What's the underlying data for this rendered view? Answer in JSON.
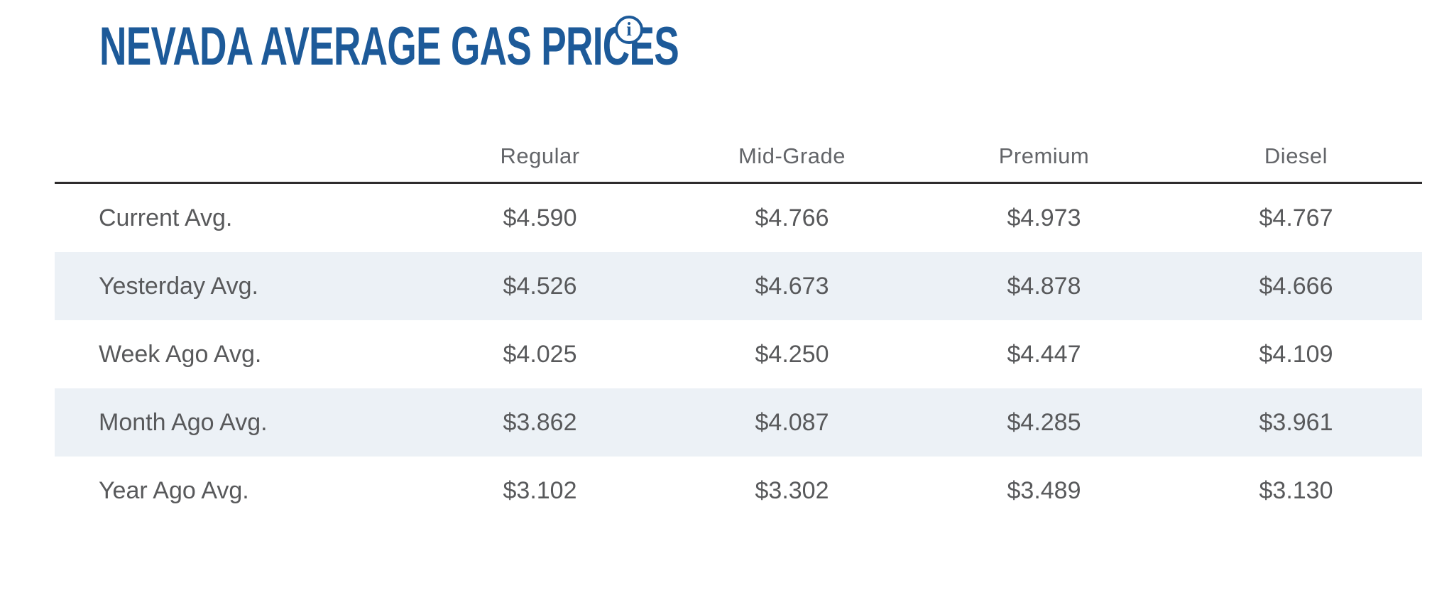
{
  "page": {
    "title": "NEVADA AVERAGE GAS PRICES",
    "info_icon_glyph": "i"
  },
  "colors": {
    "title_blue": "#1d5a99",
    "row_stripe": "#ecf1f6",
    "text_gray": "#58595b",
    "divider": "#2e2c2d"
  },
  "chart_data": {
    "type": "table",
    "title": "Nevada Average Gas Prices",
    "columns": [
      "Regular",
      "Mid-Grade",
      "Premium",
      "Diesel"
    ],
    "rows": [
      {
        "label": "Current Avg.",
        "values": [
          "$4.590",
          "$4.766",
          "$4.973",
          "$4.767"
        ]
      },
      {
        "label": "Yesterday Avg.",
        "values": [
          "$4.526",
          "$4.673",
          "$4.878",
          "$4.666"
        ]
      },
      {
        "label": "Week Ago Avg.",
        "values": [
          "$4.025",
          "$4.250",
          "$4.447",
          "$4.109"
        ]
      },
      {
        "label": "Month Ago Avg.",
        "values": [
          "$3.862",
          "$4.087",
          "$4.285",
          "$3.961"
        ]
      },
      {
        "label": "Year Ago Avg.",
        "values": [
          "$3.102",
          "$3.302",
          "$3.489",
          "$3.130"
        ]
      }
    ]
  }
}
